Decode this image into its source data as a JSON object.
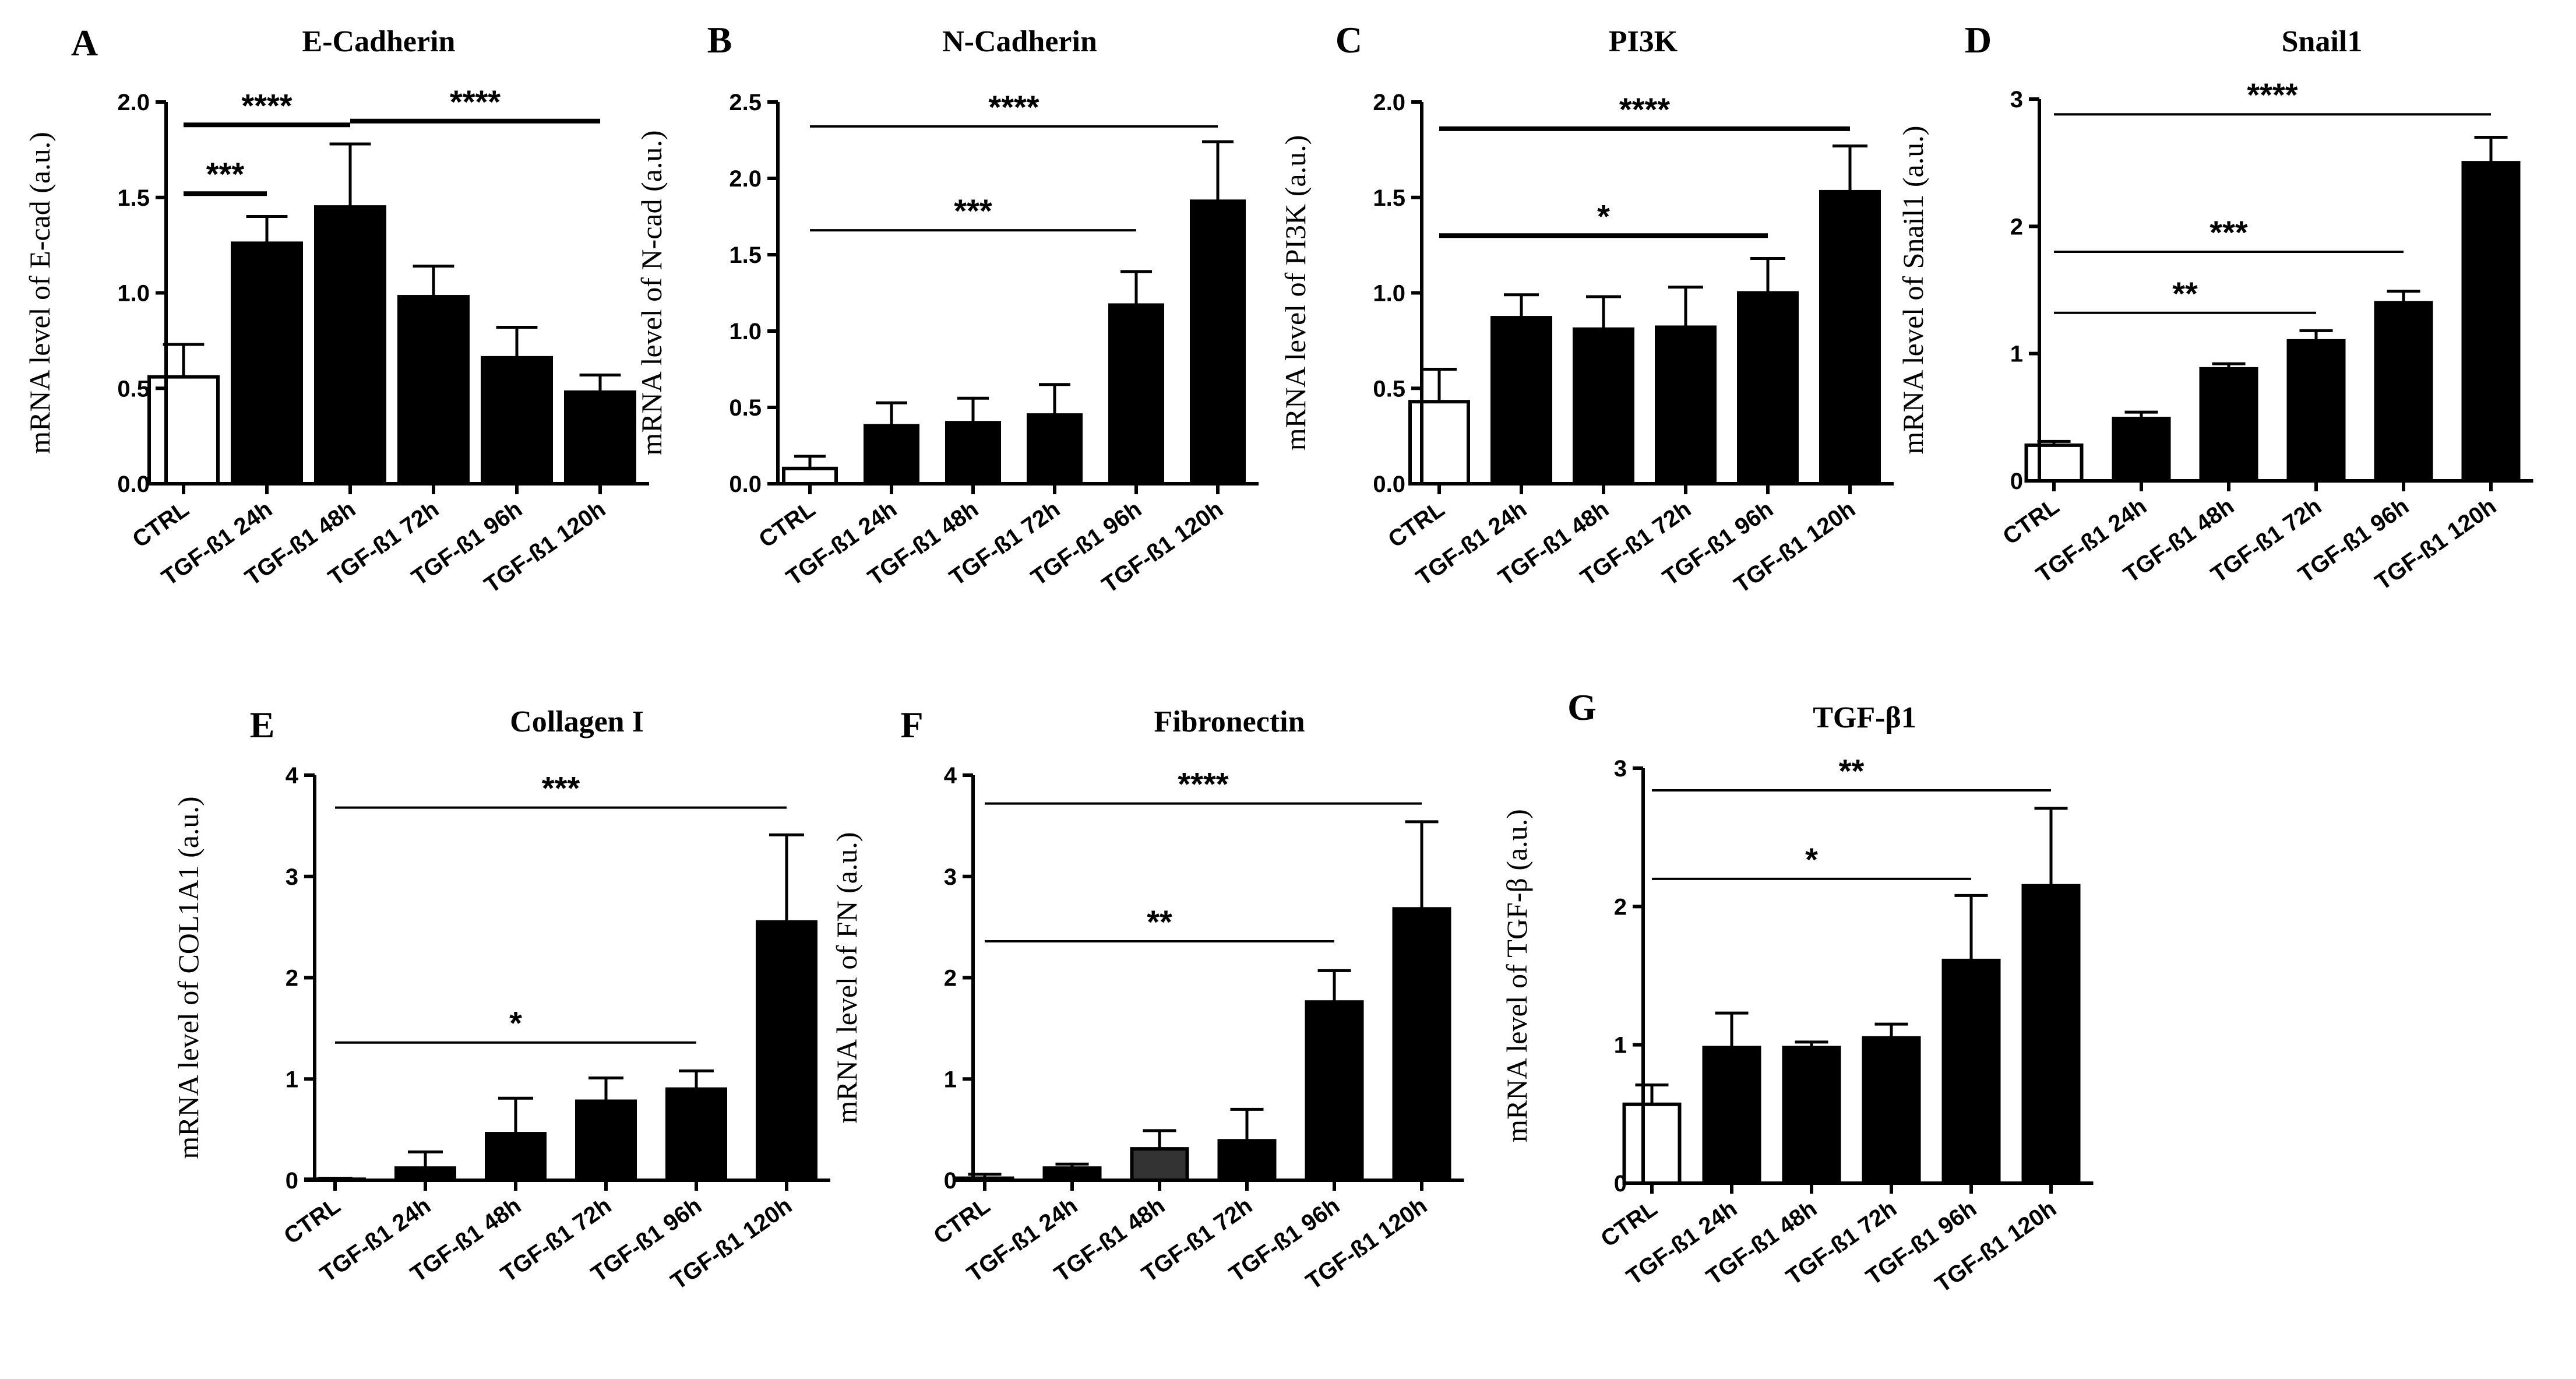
{
  "chart_data": [
    {
      "panel": "A",
      "type": "bar",
      "title": "E-Cadherin",
      "ylabel": "mRNA level of E-cad (a.u.)",
      "xlabel": "",
      "categories": [
        "CTRL",
        "TGF-ß1 24h",
        "TGF-ß1 48h",
        "TGF-ß1 72h",
        "TGF-ß1 96h",
        "TGF-ß1 120h"
      ],
      "values": [
        0.56,
        1.26,
        1.45,
        0.98,
        0.66,
        0.48
      ],
      "errors": [
        0.17,
        0.14,
        0.33,
        0.16,
        0.16,
        0.09
      ],
      "ylim": [
        0,
        2.0
      ],
      "yticks": [
        "0.0",
        "0.5",
        "1.0",
        "1.5",
        "2.0"
      ],
      "tickValues": [
        0,
        0.5,
        1.0,
        1.5,
        2.0
      ],
      "bar_fills": [
        "#ffffff",
        "#000000",
        "#000000",
        "#000000",
        "#000000",
        "#000000"
      ],
      "significance": [
        {
          "from": 0,
          "to": 1,
          "label": "***",
          "y": 1.52,
          "thick": true
        },
        {
          "from": 0,
          "to": 2,
          "label": "****",
          "y": 1.88,
          "thick": true
        },
        {
          "from": 2,
          "to": 5,
          "label": "****",
          "y": 1.9,
          "thick": true
        }
      ]
    },
    {
      "panel": "B",
      "type": "bar",
      "title": "N-Cadherin",
      "ylabel": "mRNA level of N-cad (a.u.)",
      "xlabel": "",
      "categories": [
        "CTRL",
        "TGF-ß1 24h",
        "TGF-ß1 48h",
        "TGF-ß1 72h",
        "TGF-ß1 96h",
        "TGF-ß1 120h"
      ],
      "values": [
        0.1,
        0.38,
        0.4,
        0.45,
        1.17,
        1.85
      ],
      "errors": [
        0.08,
        0.15,
        0.16,
        0.2,
        0.22,
        0.39
      ],
      "ylim": [
        0,
        2.5
      ],
      "yticks": [
        "0.0",
        "0.5",
        "1.0",
        "1.5",
        "2.0",
        "2.5"
      ],
      "tickValues": [
        0,
        0.5,
        1.0,
        1.5,
        2.0,
        2.5
      ],
      "bar_fills": [
        "#ffffff",
        "#000000",
        "#000000",
        "#000000",
        "#000000",
        "#000000"
      ],
      "significance": [
        {
          "from": 0,
          "to": 4,
          "label": "***",
          "y": 1.66,
          "thick": false
        },
        {
          "from": 0,
          "to": 5,
          "label": "****",
          "y": 2.34,
          "thick": false
        }
      ]
    },
    {
      "panel": "C",
      "type": "bar",
      "title": "PI3K",
      "ylabel": "mRNA level of PI3K (a.u.)",
      "xlabel": "",
      "categories": [
        "CTRL",
        "TGF-ß1 24h",
        "TGF-ß1 48h",
        "TGF-ß1 72h",
        "TGF-ß1 96h",
        "TGF-ß1 120h"
      ],
      "values": [
        0.43,
        0.87,
        0.81,
        0.82,
        1.0,
        1.53
      ],
      "errors": [
        0.17,
        0.12,
        0.17,
        0.21,
        0.18,
        0.24
      ],
      "ylim": [
        0,
        2.0
      ],
      "yticks": [
        "0.0",
        "0.5",
        "1.0",
        "1.5",
        "2.0"
      ],
      "tickValues": [
        0,
        0.5,
        1.0,
        1.5,
        2.0
      ],
      "bar_fills": [
        "#ffffff",
        "#000000",
        "#000000",
        "#000000",
        "#000000",
        "#000000"
      ],
      "significance": [
        {
          "from": 0,
          "to": 4,
          "label": "*",
          "y": 1.3,
          "thick": true
        },
        {
          "from": 0,
          "to": 5,
          "label": "****",
          "y": 1.86,
          "thick": true
        }
      ]
    },
    {
      "panel": "D",
      "type": "bar",
      "title": "Snail1",
      "ylabel": "mRNA level of Snail1 (a.u.)",
      "xlabel": "",
      "categories": [
        "CTRL",
        "TGF-ß1 24h",
        "TGF-ß1 48h",
        "TGF-ß1 72h",
        "TGF-ß1 96h",
        "TGF-ß1 120h"
      ],
      "values": [
        0.28,
        0.49,
        0.88,
        1.1,
        1.4,
        2.5
      ],
      "errors": [
        0.03,
        0.05,
        0.04,
        0.08,
        0.09,
        0.2
      ],
      "ylim": [
        0,
        3
      ],
      "yticks": [
        "0",
        "1",
        "2",
        "3"
      ],
      "tickValues": [
        0,
        1,
        2,
        3
      ],
      "bar_fills": [
        "#ffffff",
        "#000000",
        "#000000",
        "#000000",
        "#000000",
        "#000000"
      ],
      "significance": [
        {
          "from": 0,
          "to": 3,
          "label": "**",
          "y": 1.32,
          "thick": false
        },
        {
          "from": 0,
          "to": 4,
          "label": "***",
          "y": 1.8,
          "thick": false
        },
        {
          "from": 0,
          "to": 5,
          "label": "****",
          "y": 2.88,
          "thick": false
        }
      ]
    },
    {
      "panel": "E",
      "type": "bar",
      "title": "Collagen I",
      "ylabel": "mRNA level of COL1A1 (a.u.)",
      "xlabel": "",
      "categories": [
        "CTRL",
        "TGF-ß1 24h",
        "TGF-ß1 48h",
        "TGF-ß1 72h",
        "TGF-ß1 96h",
        "TGF-ß1 120h"
      ],
      "values": [
        0.01,
        0.12,
        0.46,
        0.78,
        0.9,
        2.55
      ],
      "errors": [
        0.01,
        0.16,
        0.35,
        0.23,
        0.18,
        0.86
      ],
      "ylim": [
        0,
        4
      ],
      "yticks": [
        "0",
        "1",
        "2",
        "3",
        "4"
      ],
      "tickValues": [
        0,
        1,
        2,
        3,
        4
      ],
      "bar_fills": [
        "#ffffff",
        "#000000",
        "#000000",
        "#000000",
        "#000000",
        "#000000"
      ],
      "significance": [
        {
          "from": 0,
          "to": 4,
          "label": "*",
          "y": 1.36,
          "thick": false
        },
        {
          "from": 0,
          "to": 5,
          "label": "***",
          "y": 3.68,
          "thick": false
        }
      ]
    },
    {
      "panel": "F",
      "type": "bar",
      "title": "Fibronectin",
      "ylabel": "mRNA level of FN (a.u.)",
      "xlabel": "",
      "categories": [
        "CTRL",
        "TGF-ß1 24h",
        "TGF-ß1 48h",
        "TGF-ß1 72h",
        "TGF-ß1 96h",
        "TGF-ß1 120h"
      ],
      "values": [
        0.02,
        0.12,
        0.31,
        0.39,
        1.76,
        2.68
      ],
      "errors": [
        0.04,
        0.04,
        0.18,
        0.31,
        0.31,
        0.86
      ],
      "ylim": [
        0,
        4
      ],
      "yticks": [
        "0",
        "1",
        "2",
        "3",
        "4"
      ],
      "tickValues": [
        0,
        1,
        2,
        3,
        4
      ],
      "bar_fills": [
        "#ffffff",
        "#000000",
        "#333333",
        "#000000",
        "#000000",
        "#000000"
      ],
      "significance": [
        {
          "from": 0,
          "to": 4,
          "label": "**",
          "y": 2.36,
          "thick": false
        },
        {
          "from": 0,
          "to": 5,
          "label": "****",
          "y": 3.72,
          "thick": false
        }
      ]
    },
    {
      "panel": "G",
      "type": "bar",
      "title": "TGF-β1",
      "ylabel": "mRNA level of TGF-β (a.u.)",
      "xlabel": "",
      "categories": [
        "CTRL",
        "TGF-ß1 24h",
        "TGF-ß1 48h",
        "TGF-ß1 72h",
        "TGF-ß1 96h",
        "TGF-ß1 120h"
      ],
      "values": [
        0.57,
        0.98,
        0.98,
        1.05,
        1.61,
        2.15
      ],
      "errors": [
        0.14,
        0.25,
        0.04,
        0.1,
        0.47,
        0.56
      ],
      "ylim": [
        0,
        3
      ],
      "yticks": [
        "0",
        "1",
        "2",
        "3"
      ],
      "tickValues": [
        0,
        1,
        2,
        3
      ],
      "bar_fills": [
        "#ffffff",
        "#000000",
        "#000000",
        "#000000",
        "#000000",
        "#000000"
      ],
      "significance": [
        {
          "from": 0,
          "to": 4,
          "label": "*",
          "y": 2.2,
          "thick": false
        },
        {
          "from": 0,
          "to": 5,
          "label": "**",
          "y": 2.84,
          "thick": false
        }
      ]
    }
  ]
}
